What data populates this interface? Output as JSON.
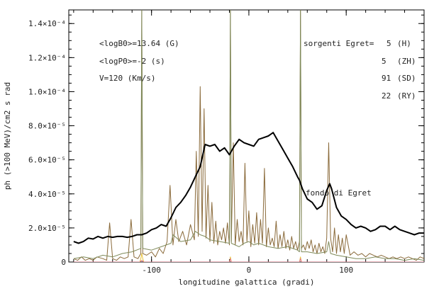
{
  "chart_data": {
    "type": "line",
    "xlabel": "longitudine galattica (gradi)",
    "ylabel": "ph (>100 MeV)/cm2 s rad",
    "xlim": [
      -185,
      180
    ],
    "ylim": [
      0,
      0.000148
    ],
    "x_ticks": [
      -100,
      0,
      100
    ],
    "x_tick_labels": [
      "-100",
      "0",
      "100"
    ],
    "y_ticks": [
      0,
      2e-05,
      4e-05,
      6e-05,
      8e-05,
      0.0001,
      0.00012,
      0.00014
    ],
    "y_tick_labels": [
      "0",
      "2.0×10⁻⁵",
      "4.0×10⁻⁵",
      "6.0×10⁻⁵",
      "8.0×10⁻⁵",
      "1.0×10⁻⁴",
      "1.2×10⁻⁴",
      "1.4×10⁻⁴"
    ],
    "parameters": [
      "<logB0>=13.64 (G)",
      "<logP0>=-2 (s)",
      "V=120 (Km/s)"
    ],
    "legend_title": "sorgenti Egret=",
    "legend": [
      {
        "count": "5",
        "code": "(H)",
        "color": "#e0788a"
      },
      {
        "count": "5",
        "code": "(ZH)",
        "color": "#e8c23a"
      },
      {
        "count": "91",
        "code": "(SD)",
        "color": "#8a6a3a"
      },
      {
        "count": "22",
        "code": "(RY)",
        "color": "#7f8a5a"
      }
    ],
    "background_label": "fondo di Egret",
    "series": [
      {
        "key": "background",
        "color": "#000000",
        "width": 2,
        "x": [
          -180,
          -175,
          -170,
          -165,
          -160,
          -155,
          -150,
          -145,
          -140,
          -135,
          -130,
          -125,
          -120,
          -115,
          -110,
          -105,
          -100,
          -95,
          -90,
          -85,
          -80,
          -75,
          -70,
          -65,
          -60,
          -55,
          -50,
          -45,
          -40,
          -35,
          -30,
          -25,
          -20,
          -15,
          -10,
          -5,
          0,
          5,
          10,
          15,
          20,
          25,
          30,
          35,
          40,
          45,
          50,
          52,
          55,
          60,
          65,
          70,
          75,
          80,
          83,
          85,
          90,
          95,
          100,
          105,
          110,
          115,
          120,
          125,
          130,
          135,
          140,
          145,
          150,
          155,
          160,
          165,
          170,
          175,
          180
        ],
        "y": [
          1.2e-05,
          1.1e-05,
          1.2e-05,
          1.4e-05,
          1.35e-05,
          1.5e-05,
          1.4e-05,
          1.5e-05,
          1.45e-05,
          1.5e-05,
          1.5e-05,
          1.45e-05,
          1.5e-05,
          1.6e-05,
          1.6e-05,
          1.7e-05,
          1.9e-05,
          2e-05,
          2.2e-05,
          2.1e-05,
          2.6e-05,
          3.2e-05,
          3.5e-05,
          3.9e-05,
          4.4e-05,
          5e-05,
          5.6e-05,
          6.9e-05,
          6.8e-05,
          6.9e-05,
          6.5e-05,
          6.7e-05,
          6.3e-05,
          6.8e-05,
          7.2e-05,
          7e-05,
          6.9e-05,
          6.8e-05,
          7.2e-05,
          7.3e-05,
          7.4e-05,
          7.6e-05,
          7.1e-05,
          6.6e-05,
          6.1e-05,
          5.6e-05,
          5e-05,
          4.8e-05,
          4.3e-05,
          3.7e-05,
          3.5e-05,
          3.1e-05,
          3.3e-05,
          4.2e-05,
          4.6e-05,
          4.3e-05,
          3.2e-05,
          2.7e-05,
          2.5e-05,
          2.2e-05,
          2e-05,
          2.1e-05,
          2e-05,
          1.8e-05,
          1.9e-05,
          2.1e-05,
          2.1e-05,
          1.9e-05,
          2.1e-05,
          1.9e-05,
          1.8e-05,
          1.7e-05,
          1.6e-05,
          1.7e-05,
          1.7e-05
        ]
      },
      {
        "key": "SD",
        "color": "#8a6a3a",
        "width": 1,
        "x": [
          -180,
          -176,
          -172,
          -168,
          -164,
          -160,
          -156,
          -150,
          -146,
          -143,
          -140,
          -136,
          -132,
          -128,
          -124,
          -121,
          -118,
          -114,
          -111,
          -110,
          -109,
          -105,
          -100,
          -96,
          -92,
          -88,
          -84,
          -81,
          -78,
          -75,
          -72,
          -68,
          -64,
          -60,
          -56,
          -54,
          -52,
          -50,
          -48,
          -46,
          -44,
          -42,
          -40,
          -38,
          -36,
          -34,
          -32,
          -30,
          -28,
          -26,
          -24,
          -22,
          -20,
          -19,
          -18,
          -16,
          -14,
          -12,
          -10,
          -8,
          -6,
          -4,
          -2,
          0,
          2,
          4,
          6,
          8,
          10,
          12,
          14,
          16,
          18,
          20,
          22,
          24,
          26,
          28,
          30,
          32,
          34,
          36,
          38,
          40,
          42,
          44,
          46,
          48,
          50,
          52,
          53,
          54,
          56,
          58,
          60,
          62,
          64,
          66,
          68,
          70,
          72,
          74,
          76,
          78,
          80,
          82,
          84,
          86,
          88,
          90,
          92,
          94,
          96,
          98,
          100,
          104,
          108,
          112,
          116,
          120,
          124,
          128,
          132,
          136,
          140,
          144,
          148,
          152,
          156,
          160,
          164,
          168,
          172,
          176,
          180
        ],
        "y": [
          2e-06,
          1e-06,
          3e-06,
          1e-06,
          2e-06,
          1e-06,
          3e-06,
          2e-06,
          1e-06,
          2.3e-05,
          2e-06,
          1e-06,
          3e-06,
          2e-06,
          3e-06,
          2.5e-05,
          3e-06,
          2e-06,
          5e-06,
          0.000148,
          5e-06,
          4e-06,
          6e-06,
          3e-06,
          8e-06,
          5e-06,
          1.2e-05,
          4.5e-05,
          1e-05,
          2.5e-05,
          1.2e-05,
          1.8e-05,
          1e-05,
          2.2e-05,
          1.3e-05,
          6.5e-05,
          1.5e-05,
          0.000103,
          1.8e-05,
          9e-05,
          1.4e-05,
          4.5e-05,
          1.2e-05,
          3.5e-05,
          1.1e-05,
          2.4e-05,
          1e-05,
          1.8e-05,
          1.3e-05,
          2e-05,
          1.1e-05,
          2.3e-05,
          1e-05,
          0.000148,
          1.2e-05,
          7e-05,
          1e-05,
          2.5e-05,
          1.2e-05,
          1.8e-05,
          1e-05,
          5.8e-05,
          1.2e-05,
          3e-05,
          9e-06,
          2.2e-05,
          1.1e-05,
          2.9e-05,
          1e-05,
          2.5e-05,
          1.1e-05,
          5.5e-05,
          9e-06,
          2e-05,
          1e-05,
          1.4e-05,
          9e-06,
          2.4e-05,
          8e-06,
          1.6e-05,
          9e-06,
          1.8e-05,
          8e-06,
          1.3e-05,
          7e-06,
          1.5e-05,
          8e-06,
          1.2e-05,
          7e-06,
          1.2e-05,
          0.000148,
          8e-06,
          1e-05,
          7e-06,
          1.2e-05,
          8e-06,
          1.3e-05,
          6e-06,
          1e-05,
          5e-06,
          1.1e-05,
          6e-06,
          9e-06,
          5e-06,
          1.4e-05,
          7e-05,
          1.4e-05,
          6e-06,
          2e-05,
          5e-06,
          1.6e-05,
          6e-06,
          1.4e-05,
          5e-06,
          1.6e-05,
          4e-06,
          6e-06,
          4e-06,
          5e-06,
          3e-06,
          5e-06,
          4e-06,
          3e-06,
          4e-06,
          3e-06,
          2e-06,
          3e-06,
          2e-06,
          3e-06,
          2e-06,
          3e-06,
          2e-06,
          1e-06,
          3e-06,
          2e-06
        ]
      },
      {
        "key": "RY",
        "color": "#7f8a5a",
        "width": 1,
        "x": [
          -180,
          -170,
          -160,
          -150,
          -140,
          -130,
          -120,
          -111,
          -110,
          -109,
          -100,
          -90,
          -80,
          -78,
          -70,
          -60,
          -55,
          -50,
          -45,
          -40,
          -30,
          -20,
          -19,
          -18,
          -10,
          -5,
          0,
          5,
          10,
          20,
          30,
          40,
          50,
          52,
          53,
          54,
          60,
          70,
          80,
          82,
          84,
          90,
          100,
          110,
          120,
          130,
          140,
          150,
          160,
          170,
          180
        ],
        "y": [
          2e-06,
          3e-06,
          2e-06,
          4e-06,
          3e-06,
          5e-06,
          6e-06,
          8e-06,
          0.000148,
          8e-06,
          7e-06,
          9e-06,
          1.1e-05,
          1.6e-05,
          1.2e-05,
          1.3e-05,
          1.8e-05,
          1.6e-05,
          1.5e-05,
          1.3e-05,
          1.2e-05,
          1.1e-05,
          0.000148,
          1.1e-05,
          9e-06,
          1.1e-05,
          1.2e-05,
          1e-05,
          1.1e-05,
          9e-06,
          8e-06,
          9e-06,
          7e-06,
          6e-06,
          0.000148,
          6e-06,
          6e-06,
          5e-06,
          6e-06,
          1.2e-05,
          5e-06,
          4e-06,
          3e-06,
          2e-06,
          2e-06,
          3e-06,
          2e-06,
          2e-06,
          1e-06,
          2e-06,
          1e-06
        ]
      },
      {
        "key": "ZH",
        "color": "#e8c23a",
        "width": 1,
        "x": [
          -180,
          -112,
          -111,
          -110,
          -109,
          -108,
          -50,
          -20,
          -19,
          -18,
          0,
          30,
          52,
          53,
          54,
          180
        ],
        "y": [
          0,
          0,
          2e-06,
          5e-06,
          2e-06,
          0,
          0,
          0,
          3e-06,
          0,
          0,
          0,
          0,
          3e-06,
          0,
          0
        ]
      },
      {
        "key": "H",
        "color": "#e0788a",
        "width": 1,
        "x": [
          -180,
          -112,
          -110,
          -108,
          -20,
          -19,
          -18,
          52,
          53,
          54,
          180
        ],
        "y": [
          0,
          0,
          1e-06,
          0,
          0,
          2e-06,
          0,
          0,
          2e-06,
          0,
          0
        ]
      }
    ]
  }
}
